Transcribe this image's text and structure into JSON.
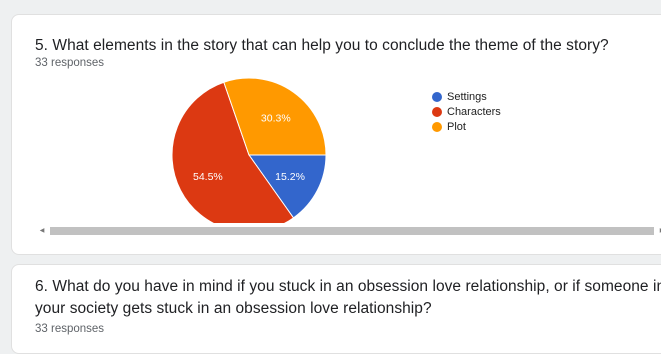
{
  "question1": {
    "title": "5. What elements in the story that can help you to conclude the theme of the story?",
    "responses": "33 responses"
  },
  "question2": {
    "title_line1": "6. What do you have in mind if you stuck in an obsession love relationship, or if someone in",
    "title_line2": "your society gets stuck in an obsession love relationship?",
    "responses": "33 responses"
  },
  "scrollbar": {
    "left_arrow": "◀",
    "right_arrow": "▶"
  },
  "chart_data": {
    "type": "pie",
    "slices": [
      {
        "label": "Settings",
        "value": 15.2,
        "display": "15.2%",
        "color": "#3366cc"
      },
      {
        "label": "Characters",
        "value": 54.5,
        "display": "54.5%",
        "color": "#dc3912"
      },
      {
        "label": "Plot",
        "value": 30.3,
        "display": "30.3%",
        "color": "#ff9900"
      }
    ],
    "legend_position": "right"
  }
}
